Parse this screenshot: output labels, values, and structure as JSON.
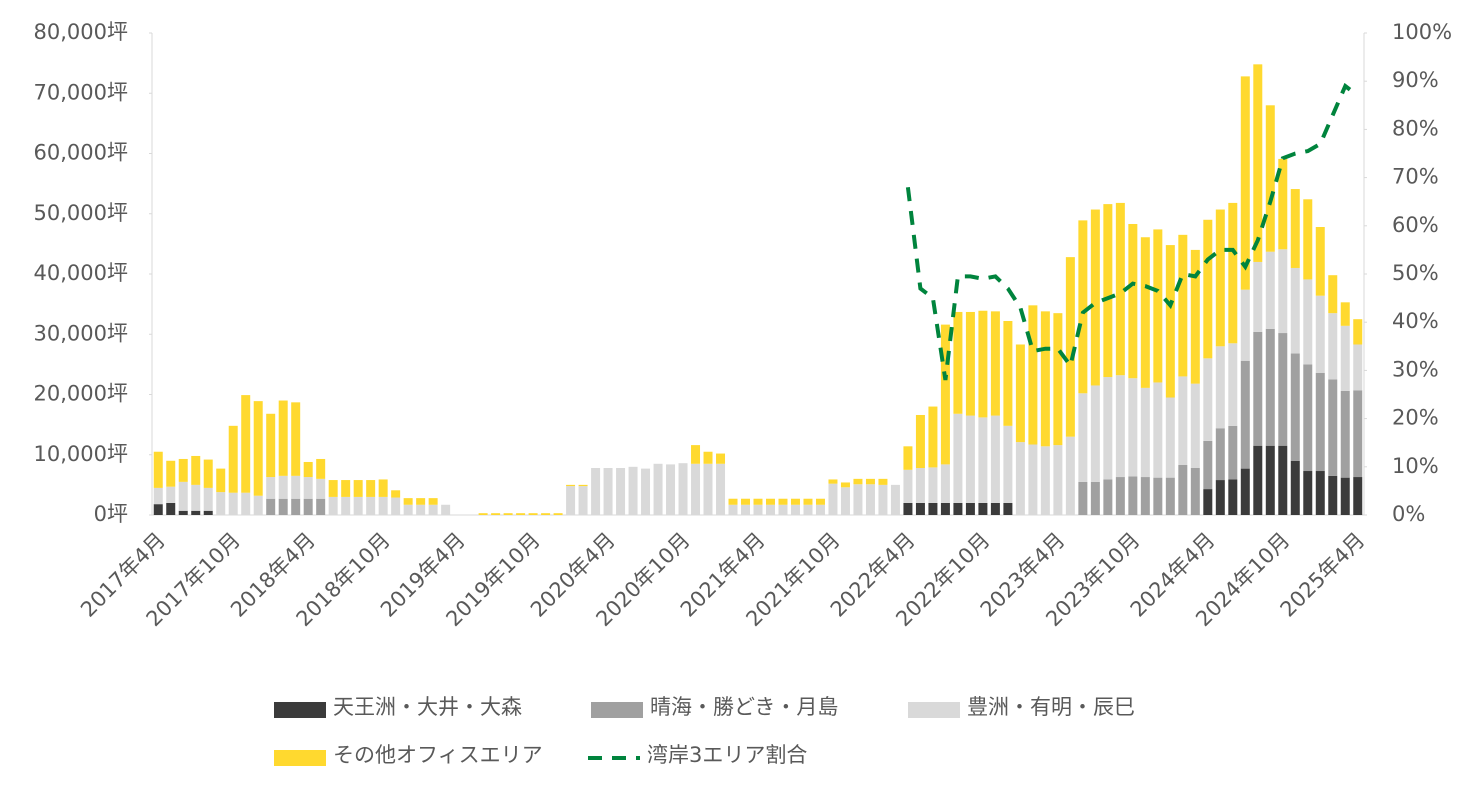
{
  "chart_data": {
    "type": "bar",
    "categories": [
      "2017年4月",
      null,
      null,
      null,
      null,
      null,
      "2017年10月",
      null,
      null,
      null,
      null,
      null,
      "2018年4月",
      null,
      null,
      null,
      null,
      null,
      "2018年10月",
      null,
      null,
      null,
      null,
      null,
      "2019年4月",
      null,
      null,
      null,
      null,
      null,
      "2019年10月",
      null,
      null,
      null,
      null,
      null,
      "2020年4月",
      null,
      null,
      null,
      null,
      null,
      "2020年10月",
      null,
      null,
      null,
      null,
      null,
      "2021年4月",
      null,
      null,
      null,
      null,
      null,
      "2021年10月",
      null,
      null,
      null,
      null,
      null,
      "2022年4月",
      null,
      null,
      null,
      null,
      null,
      "2022年10月",
      null,
      null,
      null,
      null,
      null,
      "2023年4月",
      null,
      null,
      null,
      null,
      null,
      "2023年10月",
      null,
      null,
      null,
      null,
      null,
      "2024年4月",
      null,
      null,
      null,
      null,
      null,
      "2024年10月",
      null,
      null,
      null,
      null,
      null,
      "2025年4月"
    ],
    "series": [
      {
        "name": "天王洲・大井・大森",
        "color": "#3b3b3b",
        "values": [
          1800,
          2000,
          700,
          700,
          700,
          0,
          0,
          0,
          0,
          0,
          0,
          0,
          0,
          0,
          0,
          0,
          0,
          0,
          0,
          0,
          0,
          0,
          0,
          0,
          0,
          0,
          0,
          0,
          0,
          0,
          0,
          0,
          0,
          0,
          0,
          0,
          0,
          0,
          0,
          0,
          0,
          0,
          0,
          0,
          0,
          0,
          0,
          0,
          0,
          0,
          0,
          0,
          0,
          0,
          0,
          0,
          0,
          0,
          0,
          0,
          2000,
          2000,
          2000,
          2000,
          2000,
          2000,
          2000,
          2000,
          2000,
          0,
          0,
          0,
          0,
          0,
          0,
          0,
          0,
          0,
          0,
          0,
          0,
          0,
          0,
          0,
          4300,
          5800,
          5900,
          7700,
          11500,
          11500,
          11500,
          9000,
          7300,
          7300,
          6500,
          6200,
          6300
        ]
      },
      {
        "name": "晴海・勝どき・月島",
        "color": "#a0a0a0",
        "values": [
          0,
          0,
          0,
          0,
          0,
          0,
          0,
          0,
          0,
          2700,
          2700,
          2700,
          2700,
          2700,
          0,
          0,
          0,
          0,
          0,
          0,
          0,
          0,
          0,
          0,
          0,
          0,
          0,
          0,
          0,
          0,
          0,
          0,
          0,
          0,
          0,
          0,
          0,
          0,
          0,
          0,
          0,
          0,
          0,
          0,
          0,
          0,
          0,
          0,
          0,
          0,
          0,
          0,
          0,
          0,
          0,
          0,
          0,
          0,
          0,
          0,
          0,
          0,
          0,
          0,
          0,
          0,
          0,
          0,
          0,
          0,
          0,
          0,
          0,
          0,
          5500,
          5500,
          5900,
          6300,
          6400,
          6300,
          6200,
          6200,
          8300,
          7800,
          8000,
          8600,
          8900,
          17900,
          18900,
          19400,
          18700,
          17800,
          17700,
          16300,
          16000,
          14400,
          14400
        ]
      },
      {
        "name": "豊洲・有明・辰巳",
        "color": "#d9d9d9",
        "values": [
          2700,
          2700,
          4800,
          4300,
          3800,
          3800,
          3700,
          3700,
          3200,
          3600,
          3800,
          3800,
          3600,
          3300,
          3000,
          3000,
          3000,
          3000,
          3000,
          2900,
          1700,
          1700,
          1700,
          1700,
          0,
          0,
          0,
          0,
          0,
          0,
          0,
          0,
          0,
          4800,
          4800,
          7800,
          7800,
          7800,
          8000,
          7700,
          8500,
          8400,
          8600,
          8500,
          8500,
          8500,
          1700,
          1700,
          1700,
          1700,
          1700,
          1700,
          1700,
          1700,
          5200,
          4600,
          5100,
          5100,
          5000,
          5000,
          5500,
          5800,
          5900,
          6400,
          14800,
          14500,
          14200,
          14500,
          12800,
          12100,
          11700,
          11400,
          11600,
          13000,
          14700,
          16000,
          17000,
          16900,
          16300,
          14800,
          15800,
          13300,
          14700,
          14000,
          13700,
          13600,
          13700,
          11800,
          11600,
          12800,
          13900,
          14200,
          14100,
          12800,
          11000,
          10800,
          7600
        ]
      },
      {
        "name": "その他オフィスエリア",
        "color": "#ffd92f",
        "values": [
          6000,
          4300,
          3800,
          4800,
          4700,
          3900,
          11100,
          16200,
          15700,
          10500,
          12500,
          12200,
          2500,
          3300,
          2800,
          2800,
          2800,
          2800,
          2900,
          1200,
          1100,
          1100,
          1100,
          0,
          0,
          0,
          300,
          300,
          300,
          300,
          300,
          300,
          300,
          200,
          200,
          0,
          0,
          0,
          0,
          0,
          0,
          0,
          0,
          3100,
          2000,
          1700,
          1000,
          1000,
          1000,
          1000,
          1000,
          1000,
          1000,
          1000,
          700,
          800,
          900,
          900,
          1000,
          0,
          3900,
          8800,
          10100,
          23200,
          16900,
          17200,
          17700,
          17300,
          17400,
          16200,
          23100,
          22400,
          21900,
          29800,
          28700,
          29200,
          28700,
          28600,
          25600,
          25000,
          25400,
          25300,
          23500,
          22200,
          23000,
          22700,
          23300,
          35400,
          32800,
          24300,
          15000,
          13100,
          13300,
          11400,
          6300,
          3900,
          4200
        ]
      },
      {
        "name": "湾岸3エリア割合",
        "color": "#00843d",
        "type": "line",
        "dashed": true,
        "axis": "y2",
        "values": [
          null,
          null,
          null,
          null,
          null,
          null,
          null,
          null,
          null,
          null,
          null,
          null,
          null,
          null,
          null,
          null,
          null,
          null,
          null,
          null,
          null,
          null,
          null,
          null,
          null,
          null,
          null,
          null,
          null,
          null,
          null,
          null,
          null,
          null,
          null,
          null,
          null,
          null,
          null,
          null,
          null,
          null,
          null,
          null,
          null,
          null,
          null,
          null,
          null,
          null,
          null,
          null,
          null,
          null,
          null,
          null,
          null,
          null,
          null,
          null,
          68,
          47,
          45,
          28,
          49.5,
          49.5,
          49,
          49.5,
          47,
          43,
          34,
          34.5,
          34.5,
          31,
          42,
          44,
          45,
          46,
          48,
          47.5,
          46.5,
          43.5,
          50,
          49.5,
          53,
          55,
          55,
          51.5,
          57,
          65,
          74,
          75,
          75.5,
          77,
          83,
          89,
          87
        ]
      }
    ],
    "stacked": true,
    "ylim": [
      0,
      80000
    ],
    "yticks": [
      {
        "value": 0,
        "label": "0坪"
      },
      {
        "value": 10000,
        "label": "10,000坪"
      },
      {
        "value": 20000,
        "label": "20,000坪"
      },
      {
        "value": 30000,
        "label": "30,000坪"
      },
      {
        "value": 40000,
        "label": "40,000坪"
      },
      {
        "value": 50000,
        "label": "50,000坪"
      },
      {
        "value": 60000,
        "label": "60,000坪"
      },
      {
        "value": 70000,
        "label": "70,000坪"
      },
      {
        "value": 80000,
        "label": "80,000坪"
      }
    ],
    "y2lim": [
      0,
      100
    ],
    "y2ticks": [
      {
        "value": 0,
        "label": "0%"
      },
      {
        "value": 10,
        "label": "10%"
      },
      {
        "value": 20,
        "label": "20%"
      },
      {
        "value": 30,
        "label": "30%"
      },
      {
        "value": 40,
        "label": "40%"
      },
      {
        "value": 50,
        "label": "50%"
      },
      {
        "value": 60,
        "label": "60%"
      },
      {
        "value": 70,
        "label": "70%"
      },
      {
        "value": 80,
        "label": "80%"
      },
      {
        "value": 90,
        "label": "90%"
      },
      {
        "value": 100,
        "label": "100%"
      }
    ],
    "grid": false,
    "legend": "bottom"
  }
}
